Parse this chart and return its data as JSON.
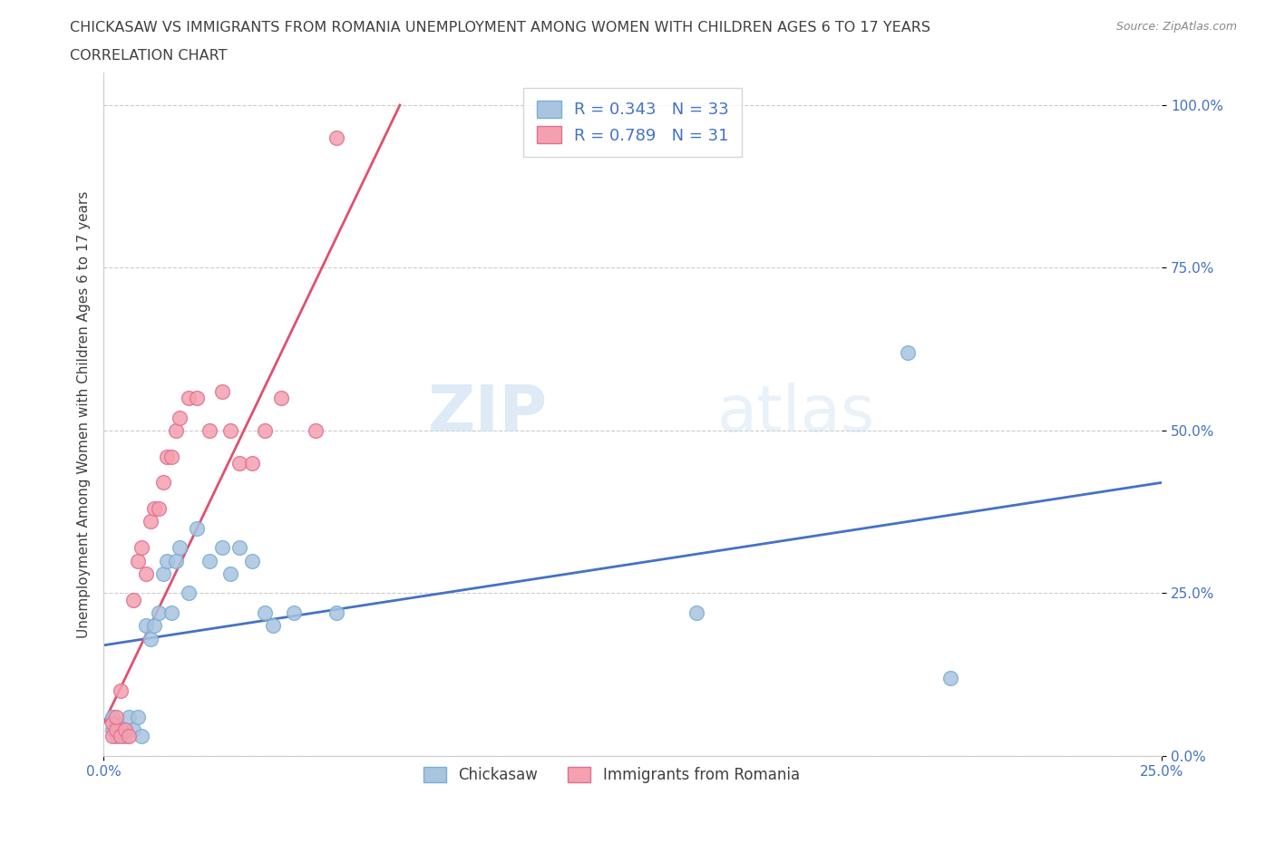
{
  "title_line1": "CHICKASAW VS IMMIGRANTS FROM ROMANIA UNEMPLOYMENT AMONG WOMEN WITH CHILDREN AGES 6 TO 17 YEARS",
  "title_line2": "CORRELATION CHART",
  "source": "Source: ZipAtlas.com",
  "ylabel": "Unemployment Among Women with Children Ages 6 to 17 years",
  "xlim": [
    0.0,
    0.25
  ],
  "ylim": [
    0.0,
    1.05
  ],
  "yticks": [
    0.0,
    0.25,
    0.5,
    0.75,
    1.0
  ],
  "ytick_labels": [
    "0.0%",
    "25.0%",
    "50.0%",
    "75.0%",
    "100.0%"
  ],
  "xticks": [
    0.0,
    0.25
  ],
  "xtick_labels": [
    "0.0%",
    "25.0%"
  ],
  "chickasaw_R": "0.343",
  "chickasaw_N": "33",
  "romania_R": "0.789",
  "romania_N": "31",
  "chickasaw_color": "#a8c4e0",
  "chickasaw_edge": "#7bafd4",
  "romania_color": "#f4a0b0",
  "romania_edge": "#e07090",
  "trendline_chickasaw_color": "#4472c4",
  "trendline_romania_color": "#e05070",
  "legend_text_color": "#4472c4",
  "title_color": "#404040",
  "watermark_zip": "ZIP",
  "watermark_atlas": "atlas",
  "chickasaw_x": [
    0.002,
    0.002,
    0.003,
    0.003,
    0.004,
    0.005,
    0.006,
    0.007,
    0.008,
    0.009,
    0.01,
    0.011,
    0.012,
    0.013,
    0.014,
    0.015,
    0.016,
    0.017,
    0.018,
    0.02,
    0.022,
    0.025,
    0.028,
    0.03,
    0.032,
    0.035,
    0.038,
    0.04,
    0.045,
    0.055,
    0.14,
    0.19,
    0.2
  ],
  "chickasaw_y": [
    0.04,
    0.06,
    0.03,
    0.05,
    0.04,
    0.03,
    0.06,
    0.04,
    0.06,
    0.03,
    0.2,
    0.18,
    0.2,
    0.22,
    0.28,
    0.3,
    0.22,
    0.3,
    0.32,
    0.25,
    0.35,
    0.3,
    0.32,
    0.28,
    0.32,
    0.3,
    0.22,
    0.2,
    0.22,
    0.22,
    0.22,
    0.62,
    0.12
  ],
  "romania_x": [
    0.002,
    0.002,
    0.003,
    0.003,
    0.004,
    0.004,
    0.005,
    0.006,
    0.007,
    0.008,
    0.009,
    0.01,
    0.011,
    0.012,
    0.013,
    0.014,
    0.015,
    0.016,
    0.017,
    0.018,
    0.02,
    0.022,
    0.025,
    0.028,
    0.03,
    0.032,
    0.035,
    0.038,
    0.042,
    0.05,
    0.055
  ],
  "romania_y": [
    0.03,
    0.05,
    0.04,
    0.06,
    0.03,
    0.1,
    0.04,
    0.03,
    0.24,
    0.3,
    0.32,
    0.28,
    0.36,
    0.38,
    0.38,
    0.42,
    0.46,
    0.46,
    0.5,
    0.52,
    0.55,
    0.55,
    0.5,
    0.56,
    0.5,
    0.45,
    0.45,
    0.5,
    0.55,
    0.5,
    0.95
  ],
  "trendline_chickasaw_x0": 0.0,
  "trendline_chickasaw_y0": 0.17,
  "trendline_chickasaw_x1": 0.25,
  "trendline_chickasaw_y1": 0.42,
  "trendline_romania_x0": 0.0,
  "trendline_romania_y0": 0.05,
  "trendline_romania_x1": 0.07,
  "trendline_romania_y1": 1.0
}
